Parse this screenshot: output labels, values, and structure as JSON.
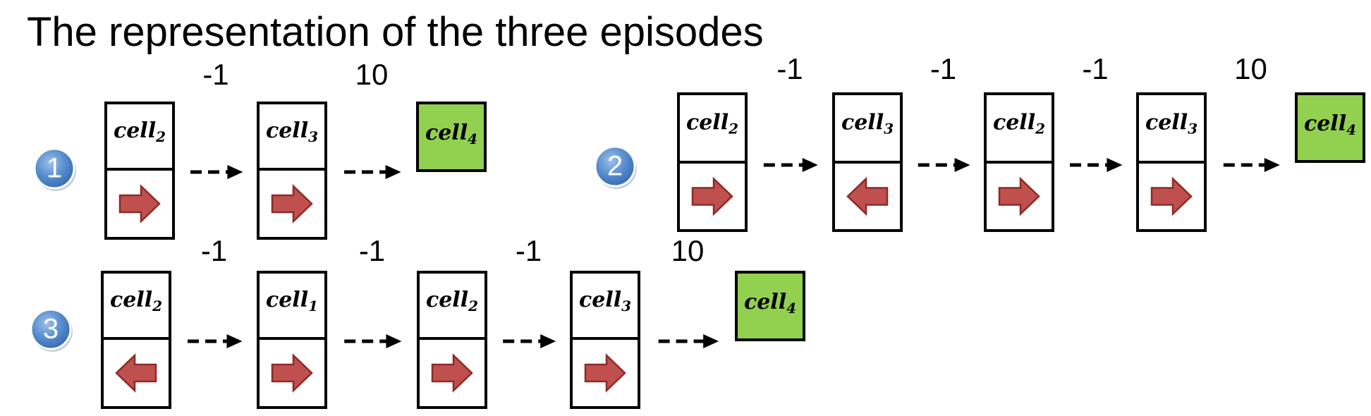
{
  "title": "The representation of the three episodes",
  "colors": {
    "terminal_fill": "#92d050",
    "arrow_fill": "#c0504d",
    "arrow_stroke": "#8c2a28",
    "badge_fill": "#4f81bd",
    "box_stroke": "#000000"
  },
  "episodes": [
    {
      "number": "1",
      "steps": [
        {
          "cell": "cell",
          "sub": "2",
          "action": "right",
          "reward": "-1"
        },
        {
          "cell": "cell",
          "sub": "3",
          "action": "right",
          "reward": "10"
        }
      ],
      "terminal": {
        "cell": "cell",
        "sub": "4"
      }
    },
    {
      "number": "2",
      "steps": [
        {
          "cell": "cell",
          "sub": "2",
          "action": "right",
          "reward": "-1"
        },
        {
          "cell": "cell",
          "sub": "3",
          "action": "left",
          "reward": "-1"
        },
        {
          "cell": "cell",
          "sub": "2",
          "action": "right",
          "reward": "-1"
        },
        {
          "cell": "cell",
          "sub": "3",
          "action": "right",
          "reward": "10"
        }
      ],
      "terminal": {
        "cell": "cell",
        "sub": "4"
      }
    },
    {
      "number": "3",
      "steps": [
        {
          "cell": "cell",
          "sub": "2",
          "action": "left",
          "reward": "-1"
        },
        {
          "cell": "cell",
          "sub": "1",
          "action": "right",
          "reward": "-1"
        },
        {
          "cell": "cell",
          "sub": "2",
          "action": "right",
          "reward": "-1"
        },
        {
          "cell": "cell",
          "sub": "3",
          "action": "right",
          "reward": "10"
        }
      ],
      "terminal": {
        "cell": "cell",
        "sub": "4"
      }
    }
  ]
}
